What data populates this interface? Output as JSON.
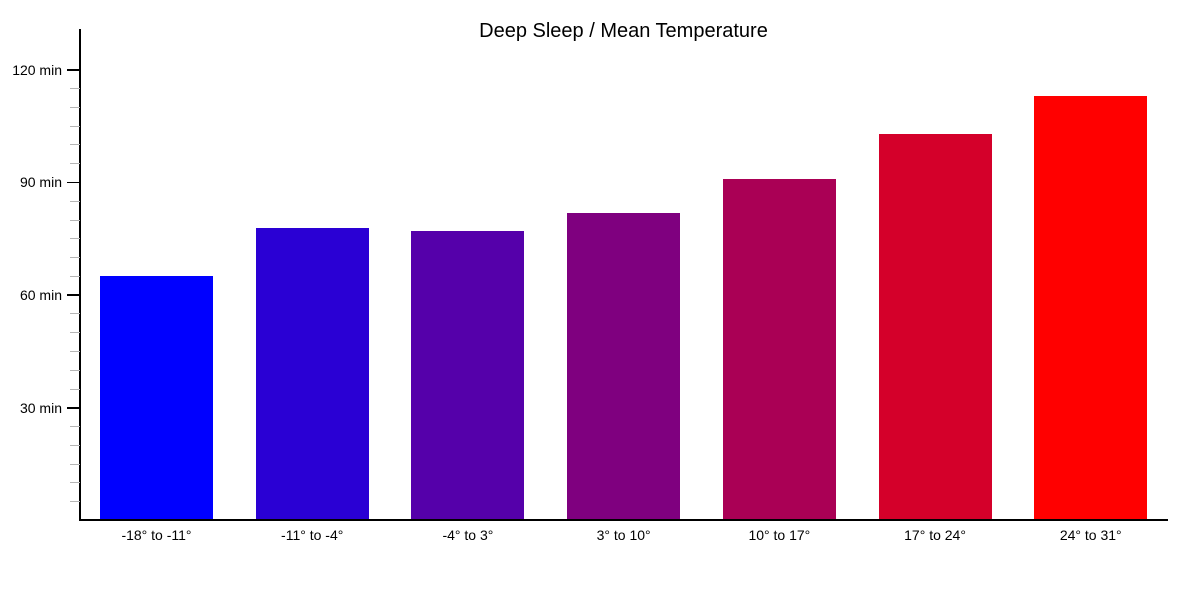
{
  "chart_data": {
    "type": "bar",
    "title": "Deep Sleep / Mean Temperature",
    "categories": [
      "-18° to -11°",
      "-11° to -4°",
      "-4° to 3°",
      "3° to 10°",
      "10° to 17°",
      "17° to 24°",
      "24° to 31°"
    ],
    "values": [
      65,
      78,
      77,
      82,
      91,
      103,
      113
    ],
    "unit": "min",
    "bar_colors": [
      "#0000ff",
      "#2a00d4",
      "#5500aa",
      "#7f007f",
      "#aa0055",
      "#d4002a",
      "#ff0000"
    ],
    "y_major_ticks": [
      {
        "value": 30,
        "label": "30 min"
      },
      {
        "value": 60,
        "label": "60 min"
      },
      {
        "value": 90,
        "label": "90 min"
      },
      {
        "value": 120,
        "label": "120 min"
      }
    ],
    "y_minor_tick_step": 5,
    "y_minor_tick_max": 120,
    "ylim": [
      0,
      131
    ],
    "xlabel": "",
    "ylabel": "",
    "grid": false,
    "legend": "none",
    "axis_color": "#000000",
    "minor_tick_color": "#b4b4b4",
    "background": "#ffffff"
  }
}
